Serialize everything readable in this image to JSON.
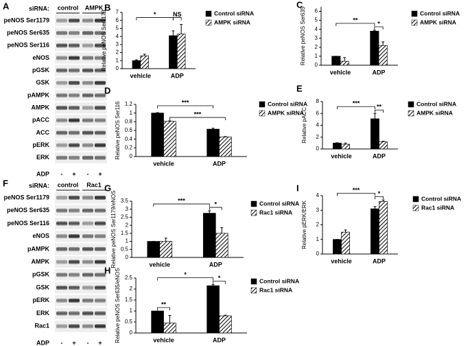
{
  "blots": [
    {
      "panel": "A",
      "header": "siRNA:",
      "groups": [
        "control",
        "AMPK"
      ],
      "rows": [
        "peNOS Ser1179",
        "peNOS Ser635",
        "peNOS Ser116",
        "eNOS",
        "pGSK",
        "GSK",
        "pAMPK",
        "AMPK",
        "pACC",
        "ACC",
        "pERK",
        "ERK"
      ],
      "treatment": "ADP",
      "lanes": [
        "-",
        "+",
        "-",
        "+"
      ]
    },
    {
      "panel": "F",
      "header": "siRNA:",
      "groups": [
        "control",
        "Rac1"
      ],
      "rows": [
        "peNOS Ser1179",
        "peNOS Ser635",
        "peNOS Ser116",
        "eNOS",
        "pAMPK",
        "AMPK",
        "pGSK",
        "GSK",
        "pERK",
        "ERK",
        "Rac1"
      ],
      "treatment": "ADP",
      "lanes": [
        "-",
        "+",
        "-",
        "+"
      ]
    }
  ],
  "chart_data": [
    {
      "type": "bar",
      "panel": "B",
      "ylabel": "Relative peNOS Ser1179",
      "categories": [
        "vehicle",
        "ADP"
      ],
      "ylim": [
        0,
        7
      ],
      "yticks": [
        0,
        1,
        2,
        3,
        4,
        5,
        6,
        7
      ],
      "series": [
        {
          "name": "Control siRNA",
          "color": "#000000",
          "values": [
            1,
            4.1
          ],
          "errors": [
            0.1,
            0.6
          ]
        },
        {
          "name": "AMPK siRNA",
          "color": "hatch",
          "values": [
            1.6,
            4.3
          ],
          "errors": [
            0.2,
            1.2
          ]
        }
      ],
      "annotations": [
        "*",
        "NS"
      ]
    },
    {
      "type": "bar",
      "panel": "C",
      "ylabel": "Relative peNOS Ser635",
      "categories": [
        "vehicle",
        "ADP"
      ],
      "ylim": [
        0,
        6.5
      ],
      "yticks": [
        0,
        1,
        2,
        3,
        4,
        5,
        6
      ],
      "series": [
        {
          "name": "Control siRNA",
          "color": "#000000",
          "values": [
            1,
            3.8
          ],
          "errors": [
            0,
            0.1
          ]
        },
        {
          "name": "AMPK siRNA",
          "color": "hatch",
          "values": [
            0.45,
            2.2
          ],
          "errors": [
            0.4,
            0.4
          ]
        }
      ],
      "annotations": [
        "**",
        "*"
      ]
    },
    {
      "type": "bar",
      "panel": "D",
      "ylabel": "Relative peNOS Ser116",
      "categories": [
        "vehicle",
        "ADP"
      ],
      "ylim": [
        0,
        1.2
      ],
      "yticks": [
        0,
        0.2,
        0.4,
        0.6,
        0.8,
        1,
        1.2
      ],
      "series": [
        {
          "name": "Control siRNA",
          "color": "#000000",
          "values": [
            1,
            0.63
          ],
          "errors": [
            0.01,
            0.02
          ]
        },
        {
          "name": "AMPK siRNA",
          "color": "hatch",
          "values": [
            0.81,
            0.45
          ],
          "errors": [
            0.01,
            0.01
          ]
        }
      ],
      "annotations": [
        "***",
        "***"
      ]
    },
    {
      "type": "bar",
      "panel": "E",
      "ylabel": "Relative pACC",
      "categories": [
        "vehicle",
        "ADP"
      ],
      "ylim": [
        0,
        8
      ],
      "yticks": [
        0,
        2,
        4,
        6,
        8
      ],
      "series": [
        {
          "name": "Control siRNA",
          "color": "#000000",
          "values": [
            1,
            5.1
          ],
          "errors": [
            0.05,
            0.9
          ]
        },
        {
          "name": "AMPK siRNA",
          "color": "hatch",
          "values": [
            0.8,
            1.2
          ],
          "errors": [
            0.2,
            0.1
          ]
        }
      ],
      "annotations": [
        "***",
        "**"
      ]
    },
    {
      "type": "bar",
      "panel": "G",
      "ylabel": "Relative peNOS Ser1179/eNOS",
      "categories": [
        "vehicle",
        "ADP"
      ],
      "ylim": [
        0,
        3.5
      ],
      "yticks": [
        0,
        0.5,
        1,
        1.5,
        2,
        2.5,
        3,
        3.5
      ],
      "series": [
        {
          "name": "Control siRNA",
          "color": "#000000",
          "values": [
            1,
            2.75
          ],
          "errors": [
            0,
            0.15
          ]
        },
        {
          "name": "Rac1 siRNA",
          "color": "hatch",
          "values": [
            1,
            1.5
          ],
          "errors": [
            0.2,
            0.35
          ]
        }
      ],
      "annotations": [
        "***",
        "*"
      ]
    },
    {
      "type": "bar",
      "panel": "I",
      "ylabel": "Relative pERK/ERK",
      "categories": [
        "vehicle",
        "ADP"
      ],
      "ylim": [
        0,
        4
      ],
      "yticks": [
        0,
        1,
        2,
        3,
        4
      ],
      "series": [
        {
          "name": "Control siRNA",
          "color": "#000000",
          "values": [
            1,
            3.1
          ],
          "errors": [
            0,
            0.15
          ]
        },
        {
          "name": "Rac1 siRNA",
          "color": "hatch",
          "values": [
            1.5,
            3.6
          ],
          "errors": [
            0.15,
            0.1
          ]
        }
      ],
      "annotations": [
        "***",
        "*"
      ]
    },
    {
      "type": "bar",
      "panel": "H",
      "ylabel": "Relative peNOS Ser635/eNOS",
      "categories": [
        "vehicle",
        "ADP"
      ],
      "ylim": [
        0,
        2.5
      ],
      "yticks": [
        0,
        0.5,
        1,
        1.5,
        2,
        2.5
      ],
      "series": [
        {
          "name": "Control siRNA",
          "color": "#000000",
          "values": [
            1,
            2.15
          ],
          "errors": [
            0,
            0.05
          ]
        },
        {
          "name": "Rac1 siRNA",
          "color": "hatch",
          "values": [
            0.45,
            0.78
          ],
          "errors": [
            0.35,
            0.03
          ]
        }
      ],
      "annotations": [
        "**",
        "*",
        "*"
      ]
    }
  ]
}
